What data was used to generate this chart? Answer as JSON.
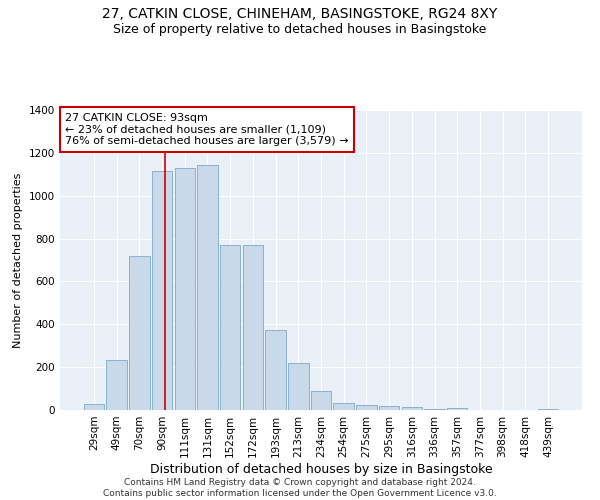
{
  "title1": "27, CATKIN CLOSE, CHINEHAM, BASINGSTOKE, RG24 8XY",
  "title2": "Size of property relative to detached houses in Basingstoke",
  "xlabel": "Distribution of detached houses by size in Basingstoke",
  "ylabel": "Number of detached properties",
  "footer": "Contains HM Land Registry data © Crown copyright and database right 2024.\nContains public sector information licensed under the Open Government Licence v3.0.",
  "categories": [
    "29sqm",
    "49sqm",
    "70sqm",
    "90sqm",
    "111sqm",
    "131sqm",
    "152sqm",
    "172sqm",
    "193sqm",
    "213sqm",
    "234sqm",
    "254sqm",
    "275sqm",
    "295sqm",
    "316sqm",
    "336sqm",
    "357sqm",
    "377sqm",
    "398sqm",
    "418sqm",
    "439sqm"
  ],
  "values": [
    30,
    235,
    720,
    1115,
    1130,
    1145,
    770,
    770,
    375,
    220,
    90,
    35,
    25,
    20,
    12,
    5,
    8,
    2,
    0,
    0,
    5
  ],
  "bar_color": "#cad9ea",
  "bar_edge_color": "#7aaac8",
  "vline_x_position": 3.15,
  "vline_color": "#cc0000",
  "annotation_text": "27 CATKIN CLOSE: 93sqm\n← 23% of detached houses are smaller (1,109)\n76% of semi-detached houses are larger (3,579) →",
  "annotation_box_color": "white",
  "annotation_box_edge": "#cc0000",
  "ylim": [
    0,
    1400
  ],
  "yticks": [
    0,
    200,
    400,
    600,
    800,
    1000,
    1200,
    1400
  ],
  "background_color": "#eaf0f8",
  "grid_color": "white",
  "title1_fontsize": 10,
  "title2_fontsize": 9,
  "xlabel_fontsize": 9,
  "ylabel_fontsize": 8,
  "tick_fontsize": 7.5,
  "footer_fontsize": 6.5,
  "annotation_fontsize": 8
}
